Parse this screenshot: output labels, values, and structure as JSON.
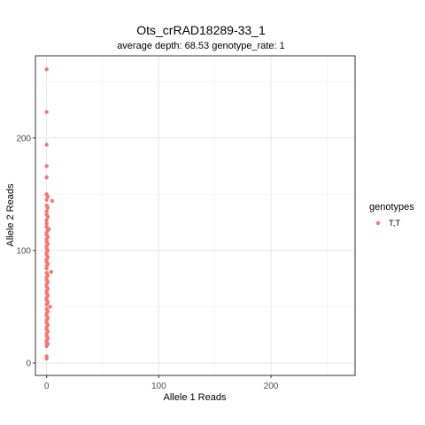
{
  "chart_data": {
    "type": "scatter",
    "title": "Ots_crRAD18289-33_1",
    "subtitle": "average depth:  68.53  genotype_rate:  1",
    "xlabel": "Allele 1 Reads",
    "ylabel": "Allele 2 Reads",
    "xlim": [
      -10,
      275
    ],
    "ylim": [
      -11,
      273
    ],
    "x_ticks": [
      0,
      100,
      200
    ],
    "y_ticks": [
      0,
      100,
      200
    ],
    "x_tick_labels": [
      "0",
      "100",
      "200"
    ],
    "y_tick_labels": [
      "0",
      "100",
      "200"
    ],
    "grid": true,
    "legend": {
      "title": "genotypes",
      "position": "right",
      "entries": [
        {
          "label": "T,T",
          "color": "#F8766D"
        }
      ]
    },
    "series": [
      {
        "name": "T,T",
        "color": "#F8766D",
        "points": [
          [
            0,
            261
          ],
          [
            0,
            223
          ],
          [
            0,
            194
          ],
          [
            0,
            175
          ],
          [
            0,
            165
          ],
          [
            0,
            150
          ],
          [
            1,
            148
          ],
          [
            0,
            145
          ],
          [
            5,
            144
          ],
          [
            0,
            140
          ],
          [
            1,
            138
          ],
          [
            0,
            135
          ],
          [
            0,
            132
          ],
          [
            1,
            130
          ],
          [
            0,
            127
          ],
          [
            0,
            124
          ],
          [
            0,
            121
          ],
          [
            2,
            119
          ],
          [
            1,
            118
          ],
          [
            0,
            116
          ],
          [
            0,
            114
          ],
          [
            1,
            112
          ],
          [
            0,
            110
          ],
          [
            0,
            108
          ],
          [
            1,
            106
          ],
          [
            0,
            104
          ],
          [
            0,
            102
          ],
          [
            1,
            100
          ],
          [
            0,
            98
          ],
          [
            0,
            96
          ],
          [
            1,
            94
          ],
          [
            0,
            92
          ],
          [
            0,
            90
          ],
          [
            1,
            88
          ],
          [
            0,
            86
          ],
          [
            0,
            84
          ],
          [
            4,
            81
          ],
          [
            0,
            80
          ],
          [
            1,
            78
          ],
          [
            0,
            76
          ],
          [
            0,
            74
          ],
          [
            1,
            72
          ],
          [
            0,
            70
          ],
          [
            0,
            68
          ],
          [
            1,
            66
          ],
          [
            0,
            64
          ],
          [
            0,
            62
          ],
          [
            1,
            60
          ],
          [
            0,
            58
          ],
          [
            0,
            56
          ],
          [
            1,
            54
          ],
          [
            0,
            52
          ],
          [
            3,
            50
          ],
          [
            0,
            48
          ],
          [
            1,
            46
          ],
          [
            0,
            44
          ],
          [
            0,
            42
          ],
          [
            1,
            40
          ],
          [
            0,
            38
          ],
          [
            0,
            36
          ],
          [
            1,
            34
          ],
          [
            0,
            32
          ],
          [
            0,
            30
          ],
          [
            1,
            28
          ],
          [
            0,
            26
          ],
          [
            0,
            24
          ],
          [
            1,
            22
          ],
          [
            0,
            20
          ],
          [
            0,
            18
          ],
          [
            1,
            17
          ],
          [
            0,
            15
          ],
          [
            0,
            6
          ],
          [
            0,
            4
          ]
        ]
      }
    ]
  }
}
